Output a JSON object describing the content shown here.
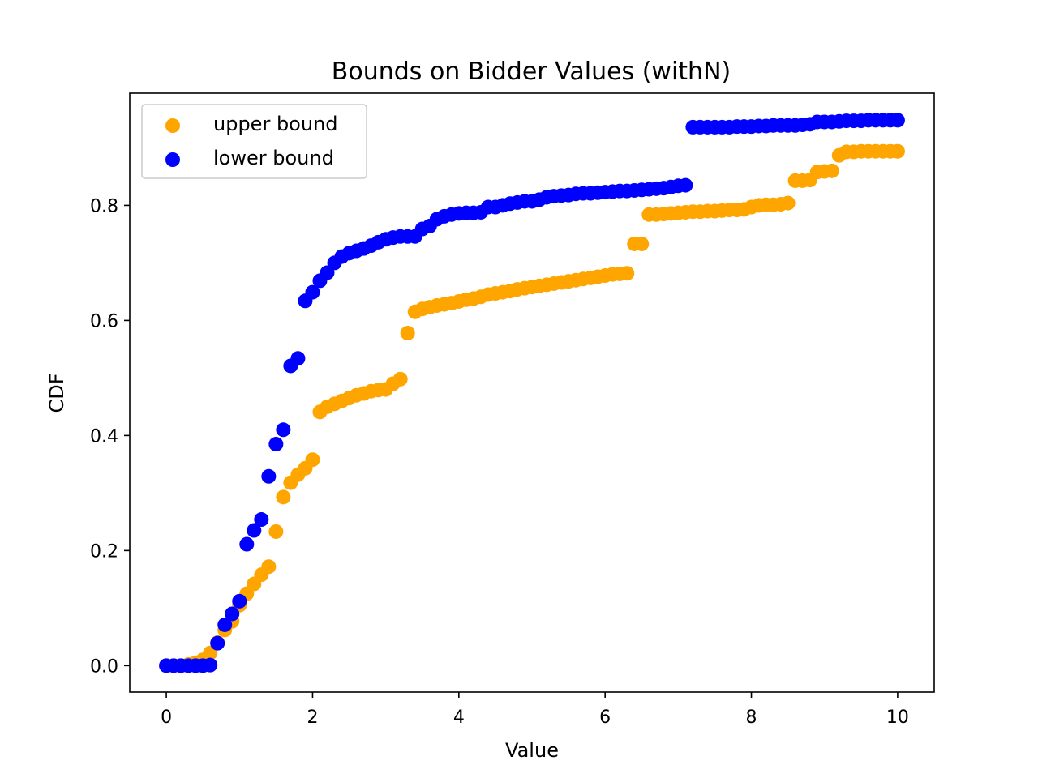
{
  "chart_data": {
    "type": "scatter",
    "title": "Bounds on Bidder Values (withN)",
    "xlabel": "Value",
    "ylabel": "CDF",
    "xlim": [
      -0.5,
      10.5
    ],
    "ylim": [
      -0.046,
      0.995
    ],
    "xticks": [
      0,
      2,
      4,
      6,
      8,
      10
    ],
    "xtick_labels": [
      "0",
      "2",
      "4",
      "6",
      "8",
      "10"
    ],
    "yticks": [
      0.0,
      0.2,
      0.4,
      0.6,
      0.8
    ],
    "ytick_labels": [
      "0.0",
      "0.2",
      "0.4",
      "0.6",
      "0.8"
    ],
    "grid": false,
    "legend_position": "top-left",
    "series": [
      {
        "name": "upper bound",
        "color": "#ffa500",
        "points": [
          [
            0.0,
            0.0
          ],
          [
            0.1,
            0.0
          ],
          [
            0.2,
            0.0
          ],
          [
            0.3,
            0.002
          ],
          [
            0.4,
            0.005
          ],
          [
            0.5,
            0.01
          ],
          [
            0.6,
            0.022
          ],
          [
            0.7,
            0.04
          ],
          [
            0.8,
            0.062
          ],
          [
            0.9,
            0.077
          ],
          [
            1.0,
            0.105
          ],
          [
            1.1,
            0.125
          ],
          [
            1.2,
            0.142
          ],
          [
            1.3,
            0.158
          ],
          [
            1.4,
            0.172
          ],
          [
            1.5,
            0.233
          ],
          [
            1.6,
            0.293
          ],
          [
            1.7,
            0.318
          ],
          [
            1.8,
            0.332
          ],
          [
            1.9,
            0.343
          ],
          [
            2.0,
            0.358
          ],
          [
            2.1,
            0.441
          ],
          [
            2.2,
            0.45
          ],
          [
            2.3,
            0.455
          ],
          [
            2.4,
            0.46
          ],
          [
            2.5,
            0.465
          ],
          [
            2.6,
            0.47
          ],
          [
            2.7,
            0.473
          ],
          [
            2.8,
            0.477
          ],
          [
            2.9,
            0.479
          ],
          [
            3.0,
            0.48
          ],
          [
            3.1,
            0.49
          ],
          [
            3.2,
            0.498
          ],
          [
            3.3,
            0.578
          ],
          [
            3.4,
            0.615
          ],
          [
            3.5,
            0.62
          ],
          [
            3.6,
            0.623
          ],
          [
            3.7,
            0.626
          ],
          [
            3.8,
            0.628
          ],
          [
            3.9,
            0.63
          ],
          [
            4.0,
            0.633
          ],
          [
            4.1,
            0.636
          ],
          [
            4.2,
            0.638
          ],
          [
            4.3,
            0.641
          ],
          [
            4.4,
            0.645
          ],
          [
            4.5,
            0.647
          ],
          [
            4.6,
            0.649
          ],
          [
            4.7,
            0.651
          ],
          [
            4.8,
            0.654
          ],
          [
            4.9,
            0.656
          ],
          [
            5.0,
            0.658
          ],
          [
            5.1,
            0.66
          ],
          [
            5.2,
            0.662
          ],
          [
            5.3,
            0.664
          ],
          [
            5.4,
            0.666
          ],
          [
            5.5,
            0.668
          ],
          [
            5.6,
            0.67
          ],
          [
            5.7,
            0.672
          ],
          [
            5.8,
            0.674
          ],
          [
            5.9,
            0.676
          ],
          [
            6.0,
            0.678
          ],
          [
            6.1,
            0.68
          ],
          [
            6.2,
            0.681
          ],
          [
            6.3,
            0.682
          ],
          [
            6.4,
            0.733
          ],
          [
            6.5,
            0.733
          ],
          [
            6.6,
            0.784
          ],
          [
            6.7,
            0.784
          ],
          [
            6.8,
            0.785
          ],
          [
            6.9,
            0.786
          ],
          [
            7.0,
            0.787
          ],
          [
            7.1,
            0.788
          ],
          [
            7.2,
            0.789
          ],
          [
            7.3,
            0.789
          ],
          [
            7.4,
            0.79
          ],
          [
            7.5,
            0.79
          ],
          [
            7.6,
            0.791
          ],
          [
            7.7,
            0.792
          ],
          [
            7.8,
            0.792
          ],
          [
            7.9,
            0.793
          ],
          [
            8.0,
            0.797
          ],
          [
            8.1,
            0.8
          ],
          [
            8.2,
            0.801
          ],
          [
            8.3,
            0.801
          ],
          [
            8.4,
            0.802
          ],
          [
            8.5,
            0.804
          ],
          [
            8.6,
            0.843
          ],
          [
            8.7,
            0.843
          ],
          [
            8.8,
            0.844
          ],
          [
            8.9,
            0.858
          ],
          [
            9.0,
            0.859
          ],
          [
            9.1,
            0.86
          ],
          [
            9.2,
            0.887
          ],
          [
            9.3,
            0.893
          ],
          [
            9.4,
            0.893
          ],
          [
            9.5,
            0.894
          ],
          [
            9.6,
            0.894
          ],
          [
            9.7,
            0.894
          ],
          [
            9.8,
            0.894
          ],
          [
            9.9,
            0.894
          ],
          [
            10.0,
            0.894
          ]
        ]
      },
      {
        "name": "lower bound",
        "color": "#0000ff",
        "points": [
          [
            0.0,
            0.0
          ],
          [
            0.1,
            0.0
          ],
          [
            0.2,
            0.0
          ],
          [
            0.3,
            0.0
          ],
          [
            0.4,
            0.0
          ],
          [
            0.5,
            0.0
          ],
          [
            0.6,
            0.001
          ],
          [
            0.7,
            0.039
          ],
          [
            0.8,
            0.071
          ],
          [
            0.9,
            0.09
          ],
          [
            1.0,
            0.112
          ],
          [
            1.1,
            0.211
          ],
          [
            1.2,
            0.235
          ],
          [
            1.3,
            0.254
          ],
          [
            1.4,
            0.329
          ],
          [
            1.5,
            0.385
          ],
          [
            1.6,
            0.41
          ],
          [
            1.7,
            0.521
          ],
          [
            1.8,
            0.534
          ],
          [
            1.9,
            0.634
          ],
          [
            2.0,
            0.649
          ],
          [
            2.1,
            0.669
          ],
          [
            2.2,
            0.683
          ],
          [
            2.3,
            0.7
          ],
          [
            2.4,
            0.711
          ],
          [
            2.5,
            0.717
          ],
          [
            2.6,
            0.721
          ],
          [
            2.7,
            0.725
          ],
          [
            2.8,
            0.73
          ],
          [
            2.9,
            0.736
          ],
          [
            3.0,
            0.741
          ],
          [
            3.1,
            0.744
          ],
          [
            3.2,
            0.746
          ],
          [
            3.3,
            0.746
          ],
          [
            3.4,
            0.746
          ],
          [
            3.5,
            0.759
          ],
          [
            3.6,
            0.764
          ],
          [
            3.7,
            0.776
          ],
          [
            3.8,
            0.781
          ],
          [
            3.9,
            0.784
          ],
          [
            4.0,
            0.786
          ],
          [
            4.1,
            0.787
          ],
          [
            4.2,
            0.787
          ],
          [
            4.3,
            0.788
          ],
          [
            4.4,
            0.797
          ],
          [
            4.5,
            0.797
          ],
          [
            4.6,
            0.8
          ],
          [
            4.7,
            0.803
          ],
          [
            4.8,
            0.805
          ],
          [
            4.9,
            0.807
          ],
          [
            5.0,
            0.807
          ],
          [
            5.1,
            0.81
          ],
          [
            5.2,
            0.814
          ],
          [
            5.3,
            0.816
          ],
          [
            5.4,
            0.817
          ],
          [
            5.5,
            0.818
          ],
          [
            5.6,
            0.82
          ],
          [
            5.7,
            0.821
          ],
          [
            5.8,
            0.821
          ],
          [
            5.9,
            0.822
          ],
          [
            6.0,
            0.823
          ],
          [
            6.1,
            0.824
          ],
          [
            6.2,
            0.825
          ],
          [
            6.3,
            0.825
          ],
          [
            6.4,
            0.826
          ],
          [
            6.5,
            0.827
          ],
          [
            6.6,
            0.828
          ],
          [
            6.7,
            0.829
          ],
          [
            6.8,
            0.83
          ],
          [
            6.9,
            0.832
          ],
          [
            7.0,
            0.834
          ],
          [
            7.1,
            0.835
          ],
          [
            7.2,
            0.936
          ],
          [
            7.3,
            0.936
          ],
          [
            7.4,
            0.936
          ],
          [
            7.5,
            0.936
          ],
          [
            7.6,
            0.936
          ],
          [
            7.7,
            0.936
          ],
          [
            7.8,
            0.937
          ],
          [
            7.9,
            0.937
          ],
          [
            8.0,
            0.937
          ],
          [
            8.1,
            0.938
          ],
          [
            8.2,
            0.938
          ],
          [
            8.3,
            0.939
          ],
          [
            8.4,
            0.939
          ],
          [
            8.5,
            0.939
          ],
          [
            8.6,
            0.939
          ],
          [
            8.7,
            0.94
          ],
          [
            8.8,
            0.941
          ],
          [
            8.9,
            0.945
          ],
          [
            9.0,
            0.945
          ],
          [
            9.1,
            0.945
          ],
          [
            9.2,
            0.946
          ],
          [
            9.3,
            0.947
          ],
          [
            9.4,
            0.947
          ],
          [
            9.5,
            0.947
          ],
          [
            9.6,
            0.948
          ],
          [
            9.7,
            0.948
          ],
          [
            9.8,
            0.948
          ],
          [
            9.9,
            0.948
          ],
          [
            10.0,
            0.948
          ]
        ]
      }
    ]
  }
}
